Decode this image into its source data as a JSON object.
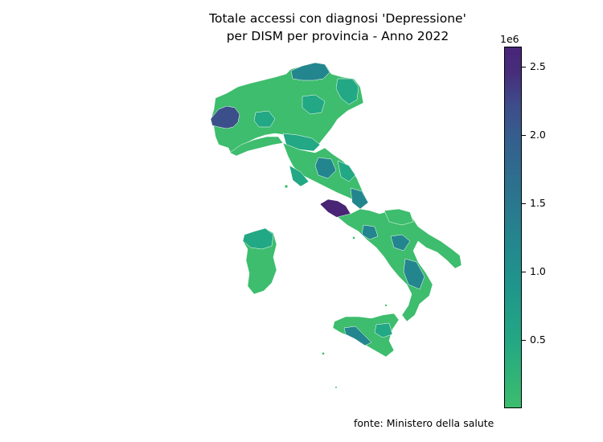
{
  "title_lines": [
    "Totale accessi con diagnosi 'Depressione'",
    "per DISM per provincia - Anno 2022"
  ],
  "colorbar": {
    "scale_label": "1e6",
    "ticks": [
      {
        "value": 0.5,
        "label": "0.5"
      },
      {
        "value": 1.0,
        "label": "1.0"
      },
      {
        "value": 1.5,
        "label": "1.5"
      },
      {
        "value": 2.0,
        "label": "2.0"
      },
      {
        "value": 2.5,
        "label": "2.5"
      }
    ],
    "range": [
      0.0,
      2.65
    ],
    "colors": [
      "#3dbd6d",
      "#1f968b",
      "#2f6b8e",
      "#3e4c8a",
      "#48257a"
    ]
  },
  "source": "fonte: Ministero della salute",
  "colors": {
    "low": "#3dbd6d",
    "mid_low": "#22a884",
    "mid": "#238a8d",
    "high": "#3a528b",
    "max": "#482575"
  }
}
